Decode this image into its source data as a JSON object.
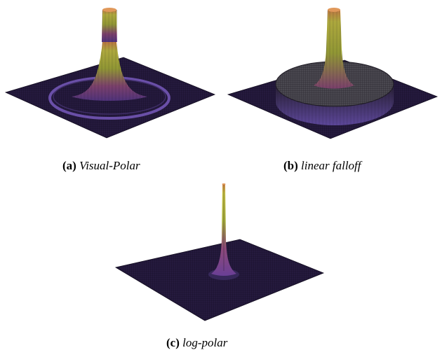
{
  "figure": {
    "colors": {
      "floor": "#251a3e",
      "floor_edge": "#150e25",
      "mesh": "#0d0a16",
      "ring": "#6a4fa8",
      "peak_low": "#7a3fa0",
      "peak_mid": "#b86a52",
      "peak_high": "#c8d044",
      "peak_top": "#e09050",
      "plateau_top": "#4a4850",
      "plateau_side": "#2c2440"
    },
    "panels": [
      {
        "id": "a",
        "label": "(a)",
        "title": "Visual-Polar",
        "surface": "central peak with ring"
      },
      {
        "id": "b",
        "label": "(b)",
        "title": "linear falloff",
        "surface": "central peak on plateau"
      },
      {
        "id": "c",
        "label": "(c)",
        "title": "log-polar",
        "surface": "narrow central spike"
      }
    ]
  }
}
